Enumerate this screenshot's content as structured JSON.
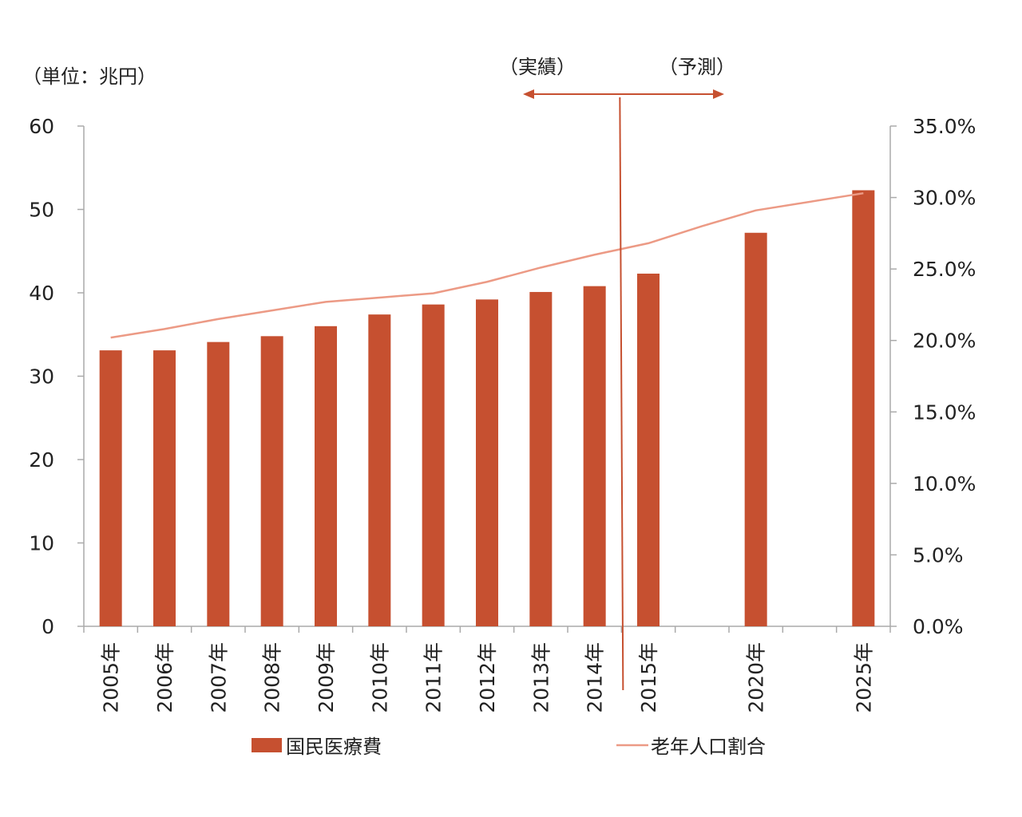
{
  "colors": {
    "bar": "#c65030",
    "line": "#ec9a85",
    "divider": "#c65030",
    "axis": "#aaaaaa",
    "text": "#222222"
  },
  "annotations": {
    "unit": "（単位：兆円）",
    "actual": "（実績）",
    "forecast": "（予測）"
  },
  "chart_data": {
    "type": "bar+line",
    "categories": [
      "2005年",
      "2006年",
      "2007年",
      "2008年",
      "2009年",
      "2010年",
      "2011年",
      "2012年",
      "2013年",
      "2014年",
      "2015年",
      "",
      "2020年",
      "",
      "2025年"
    ],
    "series": [
      {
        "name": "国民医療費",
        "type": "bar",
        "axis": "left",
        "values": [
          33.1,
          33.1,
          34.1,
          34.8,
          36.0,
          37.4,
          38.6,
          39.2,
          40.1,
          40.8,
          42.3,
          null,
          47.2,
          null,
          52.3
        ]
      },
      {
        "name": "老年人口割合",
        "type": "line",
        "axis": "right",
        "values": [
          0.202,
          0.208,
          0.215,
          0.221,
          0.227,
          0.23,
          0.233,
          0.241,
          0.251,
          0.26,
          0.268,
          0.28,
          0.291,
          null,
          0.303
        ]
      }
    ],
    "left_axis": {
      "ylim": [
        0,
        60
      ],
      "ticks": [
        0,
        10,
        20,
        30,
        40,
        50,
        60
      ],
      "tick_labels": [
        "0",
        "10",
        "20",
        "30",
        "40",
        "50",
        "60"
      ]
    },
    "right_axis": {
      "ylim": [
        0,
        0.35
      ],
      "ticks": [
        0,
        0.05,
        0.1,
        0.15,
        0.2,
        0.25,
        0.3,
        0.35
      ],
      "tick_labels": [
        "0.0%",
        "5.0%",
        "10.0%",
        "15.0%",
        "20.0%",
        "25.0%",
        "30.0%",
        "35.0%"
      ]
    },
    "divider": {
      "after_category": "2014年",
      "left_label": "（実績）",
      "right_label": "（予測）"
    },
    "grid": false,
    "legend_placement": "bottom"
  }
}
